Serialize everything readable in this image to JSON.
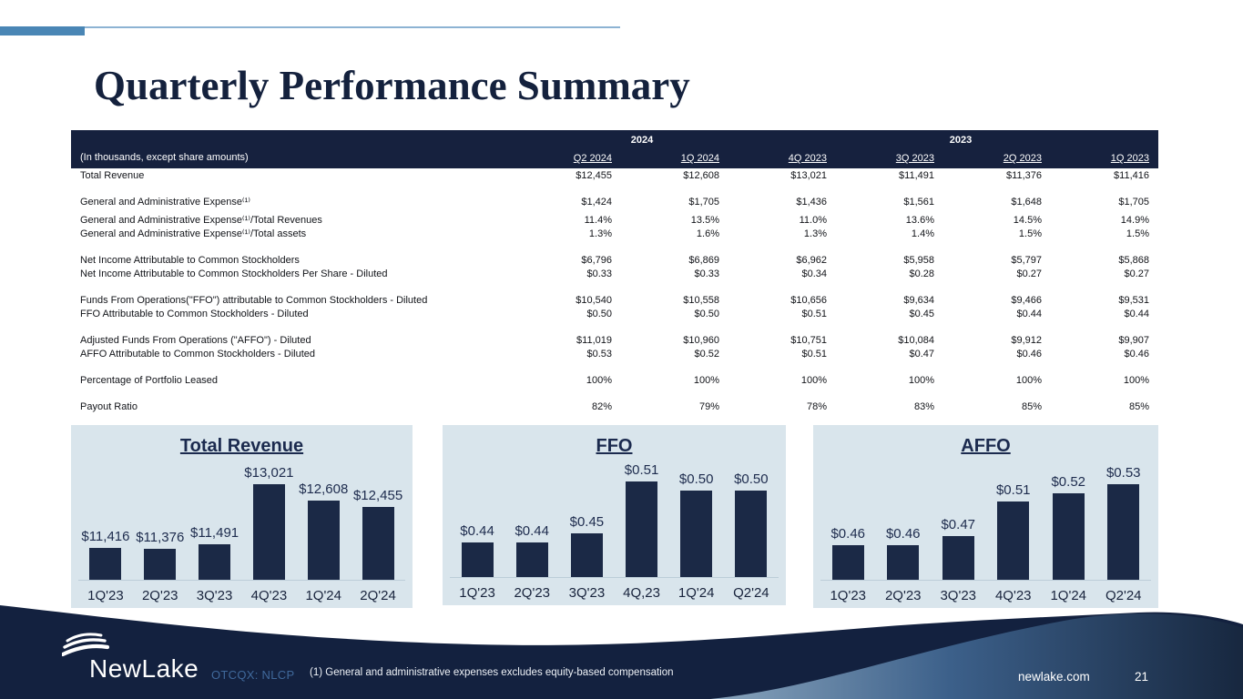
{
  "slide": {
    "title": "Quarterly Performance Summary",
    "logo_text": "NewLake",
    "ticker": "OTCQX: NLCP",
    "footnote": "(1) General and administrative expenses excludes equity-based compensation",
    "website": "newlake.com",
    "page_number": "21"
  },
  "colors": {
    "navy": "#16213e",
    "bar_navy": "#1b2946",
    "panel_bg": "#d9e5ec",
    "accent_blue": "#4a86b5",
    "footer_navy": "#13213f",
    "ticker_blue": "#40699b"
  },
  "table": {
    "note": "(In thousands, except share amounts)",
    "years": [
      "2024",
      "2023"
    ],
    "columns": [
      "Q2 2024",
      "1Q 2024",
      "4Q 2023",
      "3Q 2023",
      "2Q 2023",
      "1Q 2023"
    ],
    "rows": [
      {
        "label": "Total Revenue",
        "values": [
          "$12,455",
          "$12,608",
          "$13,021",
          "$11,491",
          "$11,376",
          "$11,416"
        ],
        "gap": ""
      },
      {
        "label": "General and Administrative Expense⁽¹⁾",
        "values": [
          "$1,424",
          "$1,705",
          "$1,436",
          "$1,561",
          "$1,648",
          "$1,705"
        ],
        "gap": "lg"
      },
      {
        "label": "General and Administrative Expense⁽¹⁾/Total Revenues",
        "values": [
          "11.4%",
          "13.5%",
          "11.0%",
          "13.6%",
          "14.5%",
          "14.9%"
        ],
        "gap": "sm"
      },
      {
        "label": "General and Administrative Expense⁽¹⁾/Total assets",
        "values": [
          "1.3%",
          "1.6%",
          "1.3%",
          "1.4%",
          "1.5%",
          "1.5%"
        ],
        "gap": ""
      },
      {
        "label": "Net Income Attributable to Common Stockholders",
        "values": [
          "$6,796",
          "$6,869",
          "$6,962",
          "$5,958",
          "$5,797",
          "$5,868"
        ],
        "gap": "lg"
      },
      {
        "label": "Net Income Attributable to Common Stockholders Per Share - Diluted",
        "values": [
          "$0.33",
          "$0.33",
          "$0.34",
          "$0.28",
          "$0.27",
          "$0.27"
        ],
        "gap": ""
      },
      {
        "label": "Funds From Operations(\"FFO\") attributable to Common Stockholders - Diluted",
        "values": [
          "$10,540",
          "$10,558",
          "$10,656",
          "$9,634",
          "$9,466",
          "$9,531"
        ],
        "gap": "lg"
      },
      {
        "label": "FFO Attributable to Common Stockholders - Diluted",
        "values": [
          "$0.50",
          "$0.50",
          "$0.51",
          "$0.45",
          "$0.44",
          "$0.44"
        ],
        "gap": ""
      },
      {
        "label": "Adjusted Funds From Operations (\"AFFO\") - Diluted",
        "values": [
          "$11,019",
          "$10,960",
          "$10,751",
          "$10,084",
          "$9,912",
          "$9,907"
        ],
        "gap": "lg"
      },
      {
        "label": "AFFO Attributable to Common Stockholders - Diluted",
        "values": [
          "$0.53",
          "$0.52",
          "$0.51",
          "$0.47",
          "$0.46",
          "$0.46"
        ],
        "gap": ""
      },
      {
        "label": "Percentage of Portfolio Leased",
        "values": [
          "100%",
          "100%",
          "100%",
          "100%",
          "100%",
          "100%"
        ],
        "gap": "lg"
      },
      {
        "label": "Payout Ratio",
        "values": [
          "82%",
          "79%",
          "78%",
          "83%",
          "85%",
          "85%"
        ],
        "gap": "lg"
      }
    ]
  },
  "chart_data": [
    {
      "type": "bar",
      "title": "Total Revenue",
      "categories": [
        "1Q'23",
        "2Q'23",
        "3Q'23",
        "4Q'23",
        "1Q'24",
        "2Q'24"
      ],
      "values": [
        11416,
        11376,
        11491,
        13021,
        12608,
        12455
      ],
      "labels": [
        "$11,416",
        "$11,376",
        "$11,491",
        "$13,021",
        "$12,608",
        "$12,455"
      ],
      "ylim": [
        10600,
        13021
      ],
      "grid": false,
      "legend": false,
      "bar_color": "#1b2946"
    },
    {
      "type": "bar",
      "title": "FFO",
      "categories": [
        "1Q'23",
        "2Q'23",
        "3Q'23",
        "4Q,23",
        "1Q'24",
        "Q2'24"
      ],
      "values": [
        0.44,
        0.44,
        0.45,
        0.51,
        0.5,
        0.5
      ],
      "labels": [
        "$0.44",
        "$0.44",
        "$0.45",
        "$0.51",
        "$0.50",
        "$0.50"
      ],
      "ylim": [
        0.4,
        0.51
      ],
      "grid": false,
      "legend": false,
      "bar_color": "#1b2946"
    },
    {
      "type": "bar",
      "title": "AFFO",
      "categories": [
        "1Q'23",
        "2Q'23",
        "3Q'23",
        "4Q'23",
        "1Q'24",
        "Q2'24"
      ],
      "values": [
        0.46,
        0.46,
        0.47,
        0.51,
        0.52,
        0.53
      ],
      "labels": [
        "$0.46",
        "$0.46",
        "$0.47",
        "$0.51",
        "$0.52",
        "$0.53"
      ],
      "ylim": [
        0.42,
        0.53
      ],
      "grid": false,
      "legend": false,
      "bar_color": "#1b2946"
    }
  ]
}
